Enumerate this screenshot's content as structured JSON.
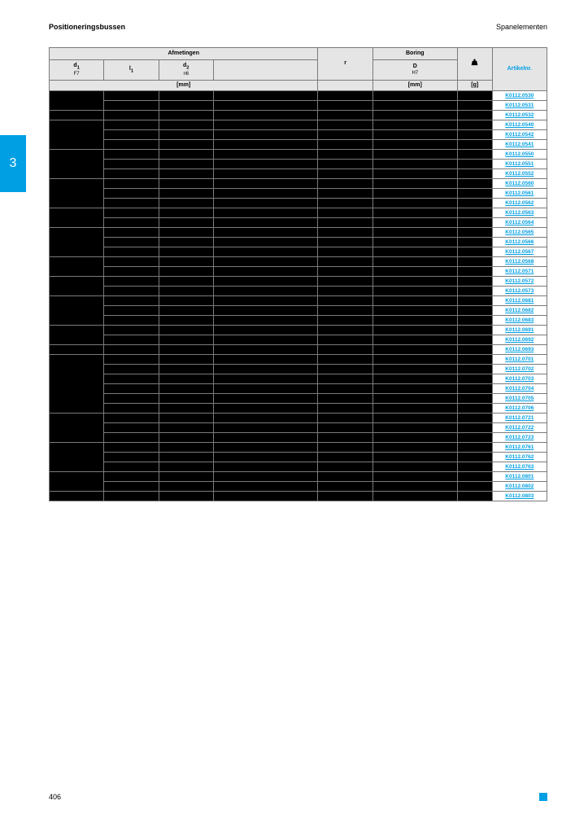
{
  "header": {
    "left": "Positioneringsbussen",
    "right": "Spanelementen"
  },
  "sideTab": "3",
  "tableHeader": {
    "groupAfmetingen": "Afmetingen",
    "groupBoring": "Boring",
    "col_d1": "d",
    "col_d1_sub1": "1",
    "col_d1_sub2": "F7",
    "col_l1": "l",
    "col_l1_sub": "1",
    "col_d2": "d",
    "col_d2_sub1": "2",
    "col_d2_sub2": "n6",
    "col_r": "r",
    "col_D": "D",
    "col_D_sub": "H7",
    "col_art": "Artikelnr.",
    "unit_mm": "[mm]",
    "unit_g": "[g]"
  },
  "groups": [
    {
      "span": 2,
      "articles": [
        "K0112.0530",
        "K0112.0531"
      ]
    },
    {
      "span": 1,
      "articles": [
        "K0112.0532"
      ]
    },
    {
      "span": 3,
      "articles": [
        "K0112.0540",
        "K0112.0542",
        "K0112.0541"
      ]
    },
    {
      "span": 3,
      "articles": [
        "K0112.0550",
        "K0112.0551",
        "K0112.0552"
      ]
    },
    {
      "span": 3,
      "articles": [
        "K0112.0560",
        "K0112.0561",
        "K0112.0562"
      ]
    },
    {
      "span": 2,
      "articles": [
        "K0112.0563",
        "K0112.0564"
      ]
    },
    {
      "span": 3,
      "articles": [
        "K0112.0565",
        "K0112.0566",
        "K0112.0567"
      ]
    },
    {
      "span": 2,
      "articles": [
        "K0112.0568",
        "K0112.0571"
      ]
    },
    {
      "span": 2,
      "articles": [
        "K0112.0572",
        "K0112.0573"
      ]
    },
    {
      "span": 3,
      "articles": [
        "K0112.0681",
        "K0112.0682",
        "K0112.0683"
      ]
    },
    {
      "span": 2,
      "articles": [
        "K0112.0691",
        "K0112.0692"
      ]
    },
    {
      "span": 1,
      "articles": [
        "K0112.0693"
      ]
    },
    {
      "span": 6,
      "articles": [
        "K0112.0701",
        "K0112.0702",
        "K0112.0703",
        "K0112.0704",
        "K0112.0705",
        "K0112.0706"
      ]
    },
    {
      "span": 3,
      "articles": [
        "K0112.0721",
        "K0112.0722",
        "K0112.0723"
      ]
    },
    {
      "span": 3,
      "articles": [
        "K0112.0761",
        "K0112.0762",
        "K0112.0763"
      ]
    },
    {
      "span": 2,
      "articles": [
        "K0112.0801",
        "K0112.0802"
      ]
    },
    {
      "span": 1,
      "articles": [
        "K0112.0803"
      ]
    }
  ],
  "footer": {
    "pageNumber": "406"
  },
  "colors": {
    "accent": "#009fe3",
    "headerBg": "#e5e5e5",
    "border": "#7a7a7a",
    "cellBlack": "#000000"
  }
}
